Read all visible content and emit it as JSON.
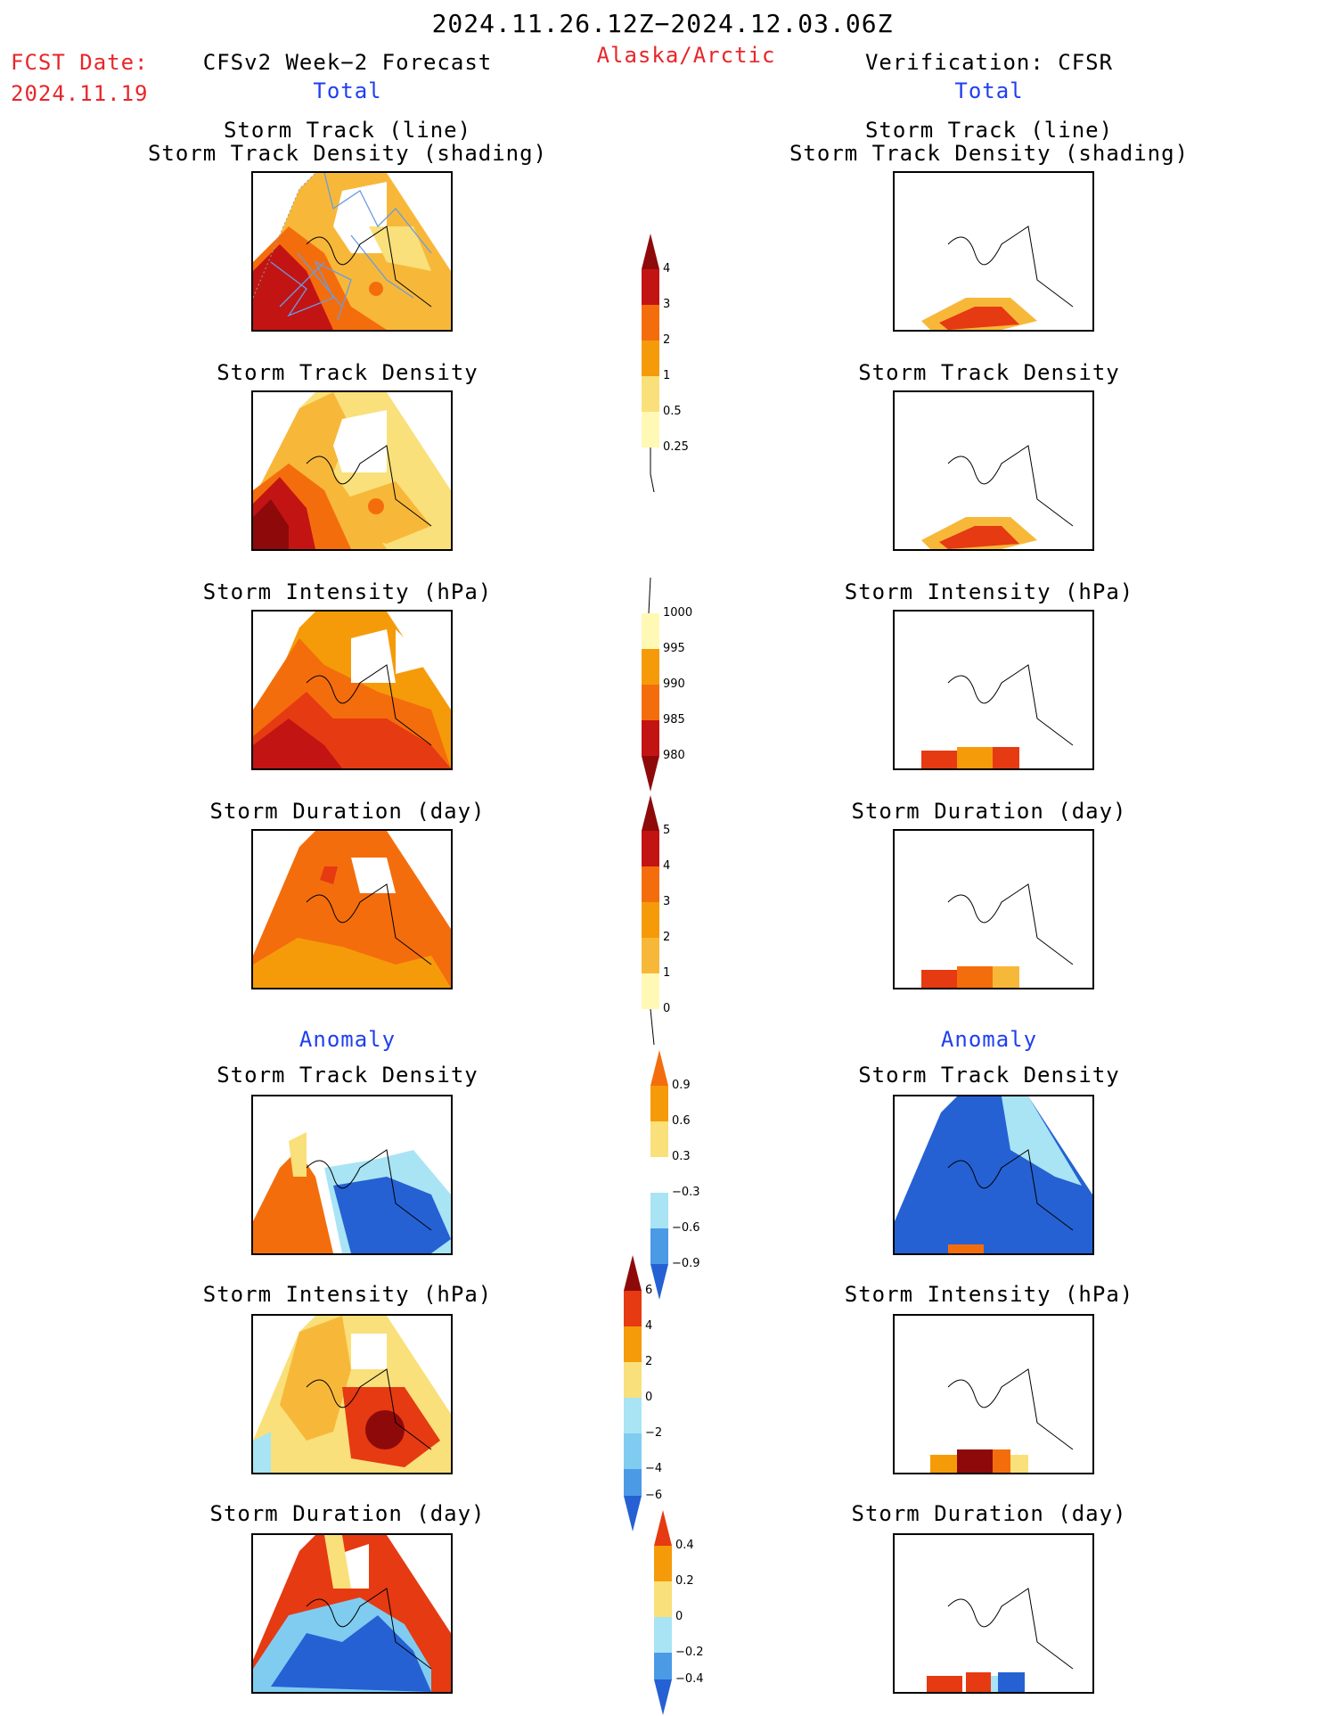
{
  "header": {
    "period": "2024.11.26.12Z−2024.12.03.06Z",
    "fcst_date_label": "FCST Date:",
    "fcst_date_value": "2024.11.19",
    "left_title": "CFSv2 Week−2 Forecast",
    "region": "Alaska/Arctic",
    "right_title": "Verification: CFSR",
    "left_subtitle": "Total",
    "right_subtitle": "Total",
    "anomaly_left": "Anomaly",
    "anomaly_right": "Anomaly"
  },
  "panels": {
    "p1_title_a": "Storm Track (line)",
    "p1_title_b": "Storm Track Density (shading)",
    "p2_title": "Storm Track Density",
    "p3_title": "Storm Intensity (hPa)",
    "p4_title": "Storm Duration (day)",
    "p5_title": "Storm Track Density",
    "p6_title": "Storm Intensity (hPa)",
    "p7_title": "Storm Duration (day)"
  },
  "colorbars": {
    "density": [
      "4",
      "3",
      "2",
      "1",
      "0.5",
      "0.25"
    ],
    "intensity": [
      "1000",
      "995",
      "990",
      "985",
      "980"
    ],
    "duration": [
      "5",
      "4",
      "3",
      "2",
      "1",
      "0"
    ],
    "density_anom": [
      "0.9",
      "0.6",
      "0.3",
      "−0.3",
      "−0.6",
      "−0.9"
    ],
    "intensity_anom": [
      "6",
      "4",
      "2",
      "0",
      "−2",
      "−4",
      "−6"
    ],
    "duration_anom": [
      "0.4",
      "0.2",
      "0",
      "−0.2",
      "−0.4"
    ]
  },
  "colors": {
    "warm": [
      "#fff9b5",
      "#f9e07a",
      "#f7b83a",
      "#f59b0a",
      "#f46d0c",
      "#e63a12",
      "#c31414",
      "#8e0a0a"
    ],
    "cool": [
      "#a8e4f4",
      "#80ccf1",
      "#4b9ae6",
      "#2561d3",
      "#1d46b8"
    ],
    "title_red": "#e8262a",
    "title_blue": "#1f3ff0"
  }
}
